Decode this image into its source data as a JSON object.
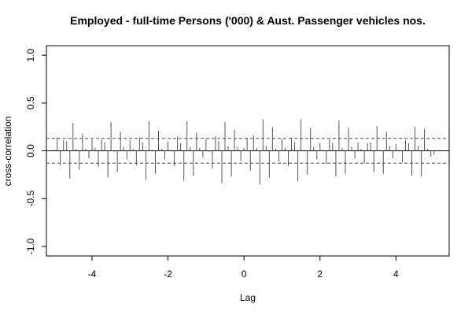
{
  "chart_data": {
    "type": "bar",
    "title": "Employed - full-time Persons ('000) & Aust. Passenger vehicles nos.",
    "xlabel": "Lag",
    "ylabel": "cross-correlation",
    "xlim": [
      -5.2,
      5.4
    ],
    "ylim": [
      -1.1,
      1.1
    ],
    "x_ticks": [
      -4,
      -2,
      0,
      2,
      4
    ],
    "y_ticks": [
      1.0,
      0.5,
      0.0,
      -0.5,
      -1.0
    ],
    "x_tick_labels": [
      "-4",
      "-2",
      "0",
      "2",
      "4"
    ],
    "y_tick_labels": [
      "1.0",
      "0.5",
      "0.0",
      "-0.5",
      "-1.0"
    ],
    "confidence_band": 0.13,
    "lags": [
      -5.0,
      -4.917,
      -4.833,
      -4.75,
      -4.667,
      -4.583,
      -4.5,
      -4.417,
      -4.333,
      -4.25,
      -4.167,
      -4.083,
      -4.0,
      -3.917,
      -3.833,
      -3.75,
      -3.667,
      -3.583,
      -3.5,
      -3.417,
      -3.333,
      -3.25,
      -3.167,
      -3.083,
      -3.0,
      -2.917,
      -2.833,
      -2.75,
      -2.667,
      -2.583,
      -2.5,
      -2.417,
      -2.333,
      -2.25,
      -2.167,
      -2.083,
      -2.0,
      -1.917,
      -1.833,
      -1.75,
      -1.667,
      -1.583,
      -1.5,
      -1.417,
      -1.333,
      -1.25,
      -1.167,
      -1.083,
      -1.0,
      -0.917,
      -0.833,
      -0.75,
      -0.667,
      -0.583,
      -0.5,
      -0.417,
      -0.333,
      -0.25,
      -0.167,
      -0.083,
      0.0,
      0.083,
      0.167,
      0.25,
      0.333,
      0.417,
      0.5,
      0.583,
      0.667,
      0.75,
      0.833,
      0.917,
      1.0,
      1.083,
      1.167,
      1.25,
      1.333,
      1.417,
      1.5,
      1.583,
      1.667,
      1.75,
      1.833,
      1.917,
      2.0,
      2.083,
      2.167,
      2.25,
      2.333,
      2.417,
      2.5,
      2.583,
      2.667,
      2.75,
      2.833,
      2.917,
      3.0,
      3.083,
      3.167,
      3.25,
      3.333,
      3.417,
      3.5,
      3.583,
      3.667,
      3.75,
      3.833,
      3.917,
      4.0,
      4.083,
      4.167,
      4.25,
      4.333,
      4.417,
      4.5,
      4.583,
      4.667,
      4.75,
      4.833,
      4.917,
      5.0
    ],
    "values": [
      0.01,
      0.14,
      -0.15,
      0.11,
      0.1,
      -0.29,
      0.29,
      0.02,
      -0.2,
      0.18,
      0.02,
      -0.08,
      0.12,
      0.03,
      -0.17,
      0.12,
      0.09,
      -0.28,
      0.3,
      -0.01,
      -0.22,
      0.2,
      0.04,
      -0.09,
      0.11,
      0.02,
      -0.15,
      0.14,
      0.09,
      -0.3,
      0.31,
      0.01,
      -0.24,
      0.21,
      0.02,
      -0.09,
      0.1,
      0.01,
      -0.16,
      0.15,
      0.08,
      -0.31,
      0.31,
      0.04,
      -0.26,
      0.19,
      0.03,
      -0.07,
      0.12,
      -0.01,
      -0.19,
      0.15,
      0.1,
      -0.34,
      0.3,
      0.05,
      -0.27,
      0.22,
      0.04,
      -0.11,
      0.03,
      0.13,
      -0.21,
      0.16,
      0.03,
      -0.35,
      0.33,
      0.05,
      -0.28,
      0.25,
      0.02,
      -0.11,
      0.12,
      0.03,
      -0.16,
      0.14,
      0.09,
      -0.32,
      0.33,
      0.01,
      -0.25,
      0.24,
      0.04,
      -0.09,
      0.08,
      0.01,
      -0.14,
      0.12,
      0.08,
      -0.27,
      0.32,
      0.03,
      -0.24,
      0.24,
      0.04,
      -0.08,
      0.09,
      0.02,
      -0.13,
      0.08,
      0.09,
      -0.22,
      0.26,
      0.01,
      -0.24,
      0.2,
      0.05,
      -0.08,
      0.07,
      0.01,
      -0.12,
      0.11,
      0.08,
      -0.26,
      0.25,
      0.05,
      -0.27,
      0.23,
      0.02,
      -0.06,
      -0.04
    ],
    "colors": {
      "stem": "#555555",
      "zero_line": "#000000",
      "confidence": "#3b3bd4",
      "frame": "#000000"
    }
  }
}
